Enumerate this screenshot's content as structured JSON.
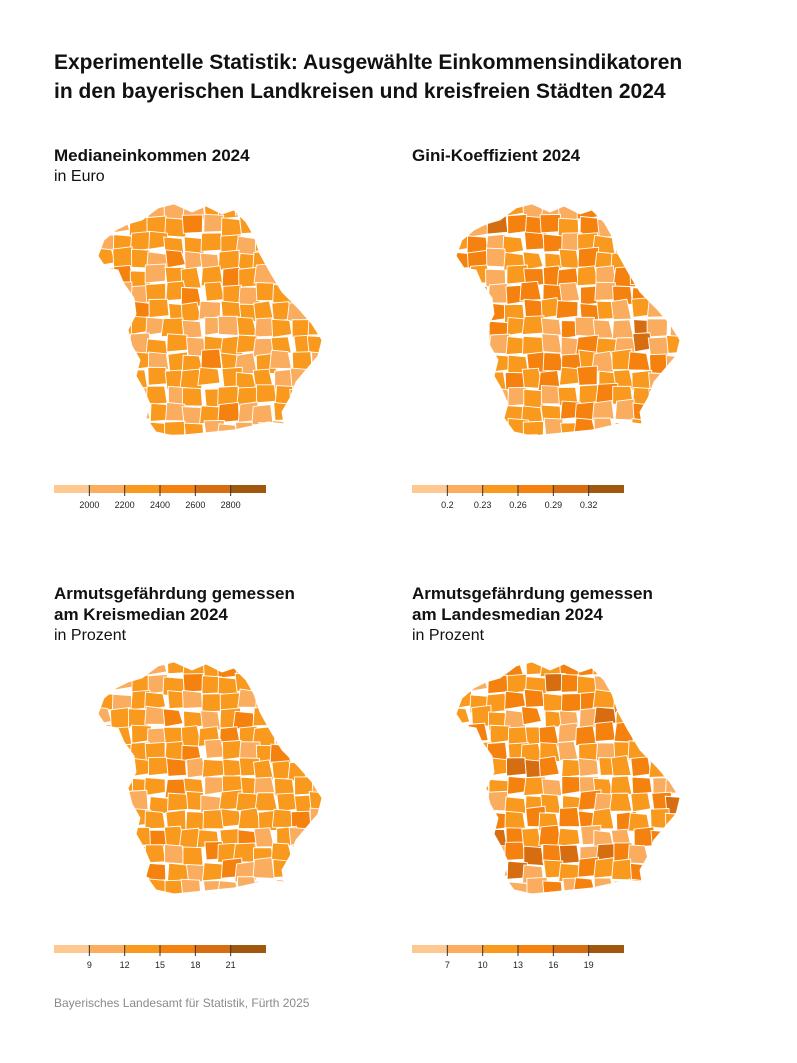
{
  "title": {
    "line1": "Experimentelle Statistik: Ausgewählte Einkommensindikatoren",
    "line2": "in den bayerischen Landkreisen und kreisfreien Städten 2024"
  },
  "source": "Bayerisches Landesamt für Statistik, Fürth 2025",
  "palette": [
    "#fdc990",
    "#fbad5f",
    "#f99a1e",
    "#f5820f",
    "#d66d10",
    "#a0580f"
  ],
  "maps": [
    {
      "title_lines": [
        "Medianeinkommen 2024"
      ],
      "unit": "in Euro",
      "legend_ticks": [
        "2000",
        "2200",
        "2400",
        "2600",
        "2800"
      ],
      "class_breaks": [
        2000,
        2200,
        2400,
        2600,
        2800
      ]
    },
    {
      "title_lines": [
        "Gini-Koeffizient 2024"
      ],
      "unit": "",
      "legend_ticks": [
        "0.2",
        "0.23",
        "0.26",
        "0.29",
        "0.32"
      ],
      "class_breaks": [
        0.2,
        0.23,
        0.26,
        0.29,
        0.32
      ]
    },
    {
      "title_lines": [
        "Armutsgefährdung gemessen",
        "am Kreismedian 2024"
      ],
      "unit": "in Prozent",
      "legend_ticks": [
        "9",
        "12",
        "15",
        "18",
        "21"
      ],
      "class_breaks": [
        9,
        12,
        15,
        18,
        21
      ]
    },
    {
      "title_lines": [
        "Armutsgefährdung gemessen",
        "am Landesmedian 2024"
      ],
      "unit": "in Prozent",
      "legend_ticks": [
        "7",
        "10",
        "13",
        "16",
        "19"
      ],
      "class_breaks": [
        7,
        10,
        13,
        16,
        19
      ]
    }
  ]
}
